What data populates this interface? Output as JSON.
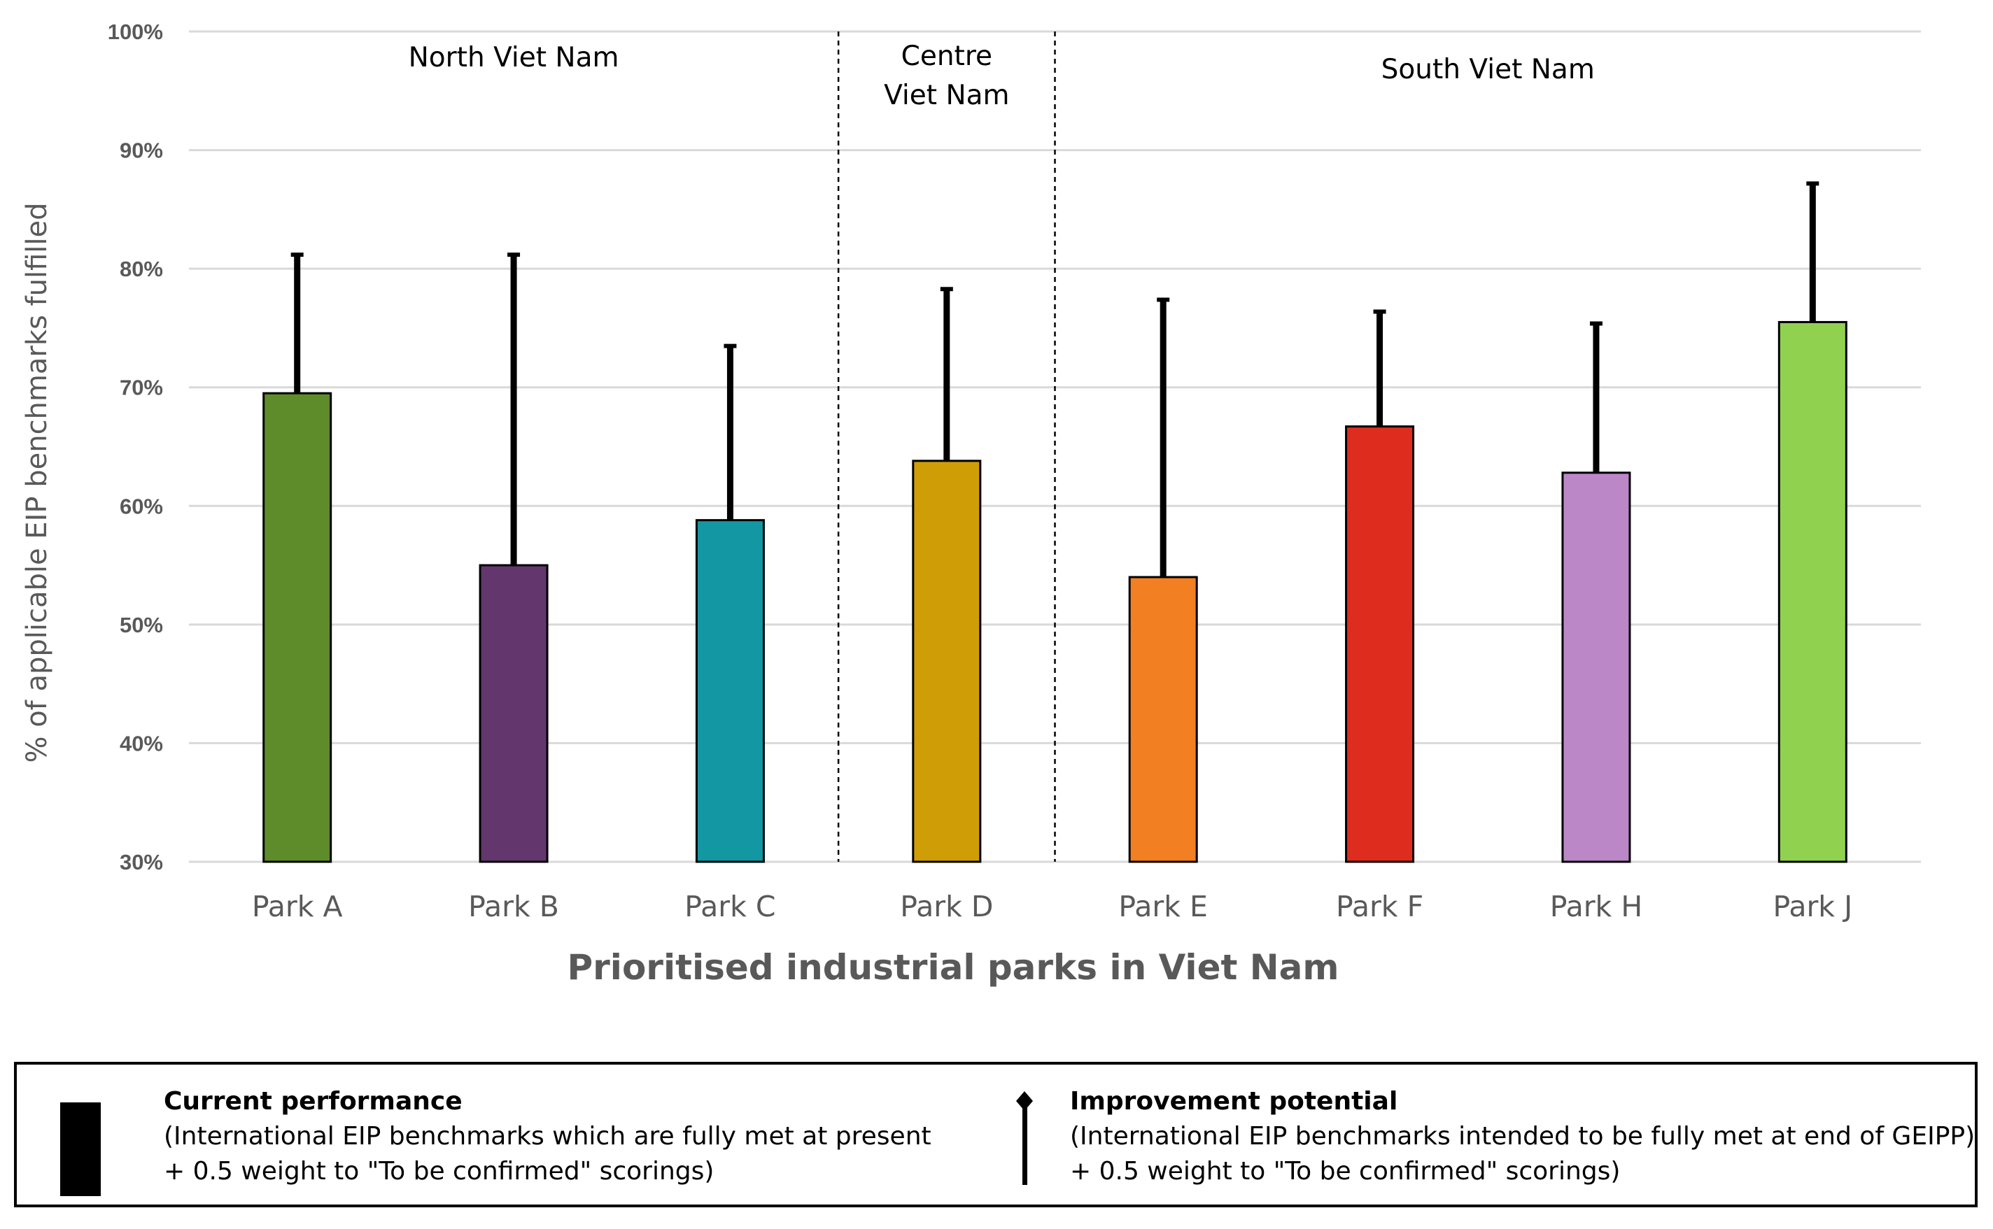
{
  "chart_data": {
    "type": "bar",
    "xlabel": "Prioritised industrial parks in Viet Nam",
    "ylabel": "% of applicable EIP benchmarks fulfilled",
    "ylim": [
      30,
      100
    ],
    "yticks": [
      "30%",
      "40%",
      "50%",
      "60%",
      "70%",
      "80%",
      "90%",
      "100%"
    ],
    "ytick_values": [
      30,
      40,
      50,
      60,
      70,
      80,
      90,
      100
    ],
    "grid": true,
    "categories": [
      "Park A",
      "Park B",
      "Park C",
      "Park D",
      "Park E",
      "Park F",
      "Park H",
      "Park J"
    ],
    "series": [
      {
        "name": "Current performance",
        "values": [
          69.5,
          55,
          58.8,
          63.8,
          54,
          66.7,
          62.8,
          75.5
        ]
      },
      {
        "name": "Improvement potential",
        "values": [
          81.3,
          81.3,
          73.6,
          78.4,
          77.5,
          76.5,
          75.5,
          87.3
        ]
      }
    ],
    "bar_colors": [
      "#5E8C2A",
      "#63376E",
      "#1297A3",
      "#CF9E07",
      "#F27F21",
      "#DE2D1F",
      "#BC87C7",
      "#91D150"
    ],
    "regions": [
      {
        "lines": [
          "North Viet Nam"
        ],
        "from_index": 0,
        "to_index": 2
      },
      {
        "lines": [
          "Centre",
          "Viet Nam"
        ],
        "from_index": 3,
        "to_index": 3
      },
      {
        "lines": [
          "South Viet Nam"
        ],
        "from_index": 4,
        "to_index": 7
      }
    ],
    "region_dividers_after_index": [
      2,
      3
    ]
  },
  "legend": {
    "current": {
      "title": "Current performance",
      "line1": "(International EIP benchmarks which are fully met at present",
      "line2": "+ 0.5 weight to \"To be confirmed\" scorings)"
    },
    "improvement": {
      "title": "Improvement potential",
      "line1": "(International EIP benchmarks intended to be fully met at end of GEIPP)",
      "line2": "+ 0.5 weight to \"To be confirmed\" scorings)"
    }
  }
}
